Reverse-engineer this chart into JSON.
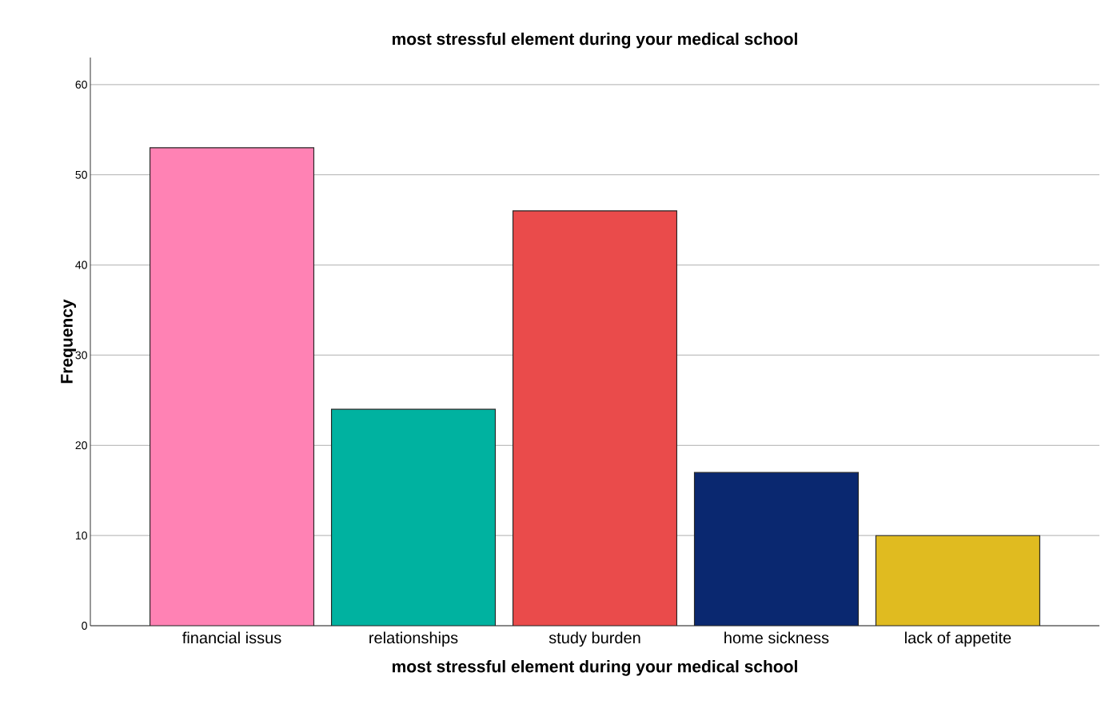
{
  "chart_data": {
    "type": "bar",
    "title": "most stressful element during your medical school",
    "xlabel": "most stressful element during your medical school",
    "ylabel": "Frequency",
    "categories": [
      "financial issus",
      "relationships",
      "study burden",
      "home sickness",
      "lack of appetite"
    ],
    "values": [
      53,
      24,
      46,
      17,
      10
    ],
    "colors": [
      "#ff82b4",
      "#00b2a0",
      "#ea4b4b",
      "#0a2870",
      "#e0bb20"
    ],
    "ylim": [
      0,
      63
    ],
    "yticks": [
      0,
      10,
      20,
      30,
      40,
      50,
      60
    ],
    "grid": "y"
  }
}
